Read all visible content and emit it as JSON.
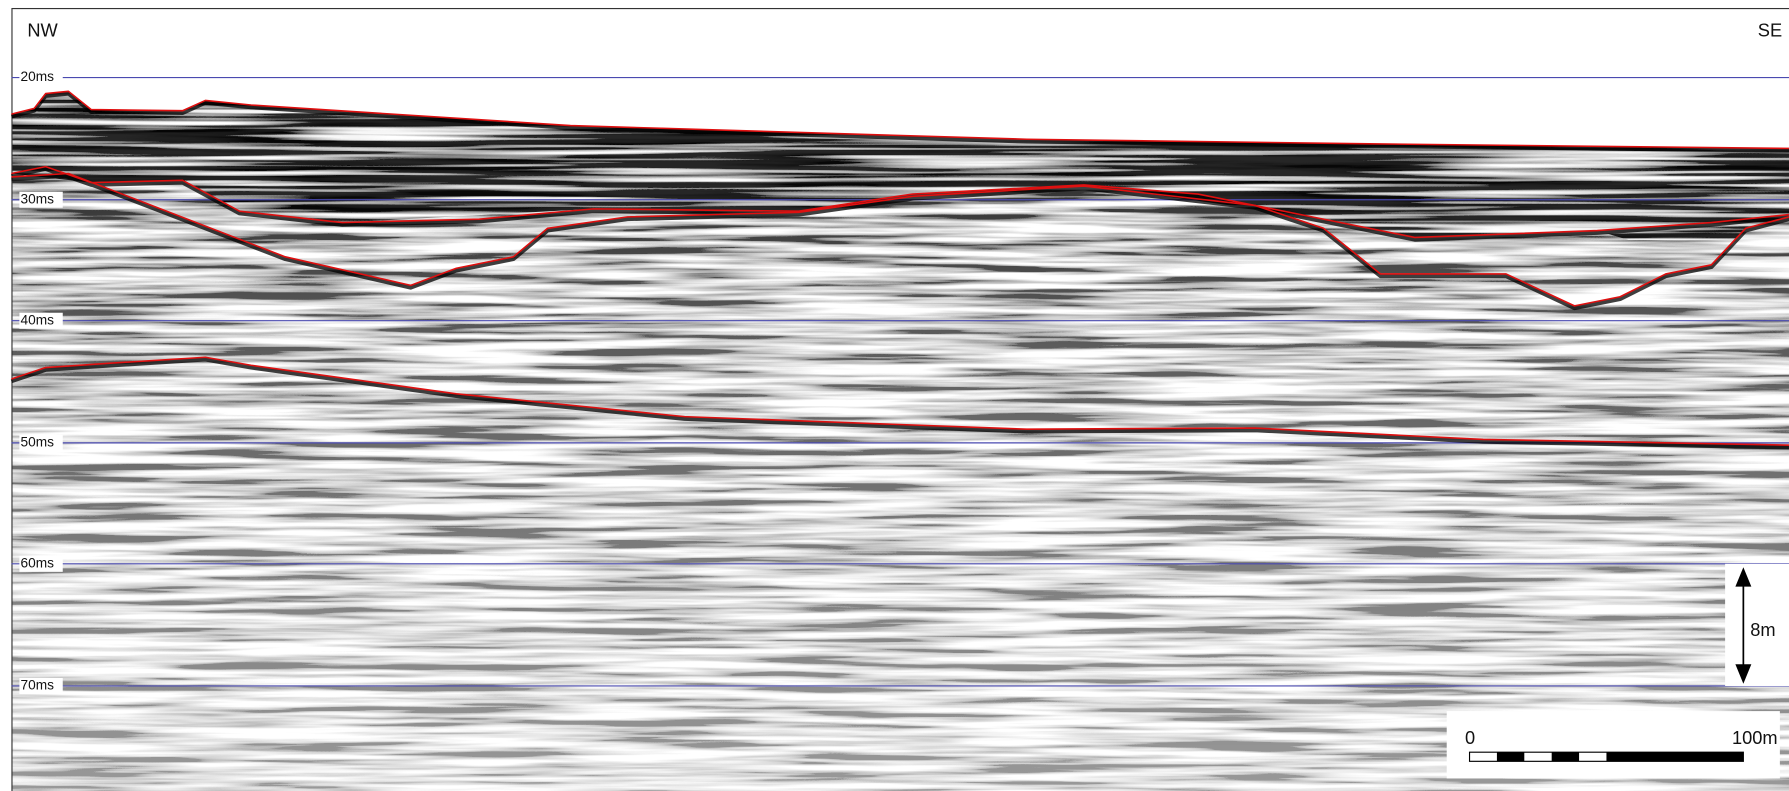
{
  "orientation": {
    "left": "NW",
    "right": "SE"
  },
  "time_lines": [
    "20ms",
    "30ms",
    "40ms",
    "50ms",
    "60ms",
    "70ms"
  ],
  "vertical_scale": "8m",
  "horizontal_scale": {
    "start": "0",
    "end": "100m"
  }
}
